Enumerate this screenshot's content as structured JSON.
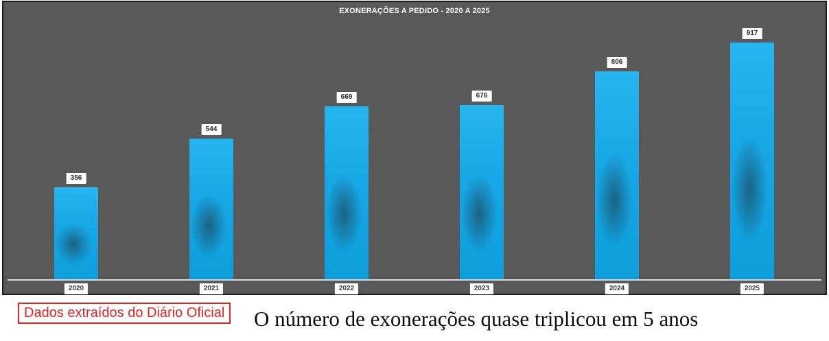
{
  "chart_data": {
    "type": "bar",
    "title": "EXONERAÇÕES A PEDIDO - 2020 A 2025",
    "categories": [
      "2020",
      "2021",
      "2022",
      "2023",
      "2024",
      "2025"
    ],
    "values": [
      356,
      544,
      669,
      676,
      806,
      917
    ],
    "xlabel": "",
    "ylabel": "",
    "ylim": [
      0,
      1080
    ],
    "grid": false,
    "legend": "none",
    "bar_color": "#17a7e6",
    "panel_background": "#595959",
    "label_chip_background": "#ffffff",
    "axis_line_color": "#d6d6d6"
  },
  "footer": {
    "source_note": "Dados extraídos do Diário Oficial",
    "source_note_color": "#e42222",
    "headline": "O número de exonerações quase triplicou em 5 anos"
  }
}
